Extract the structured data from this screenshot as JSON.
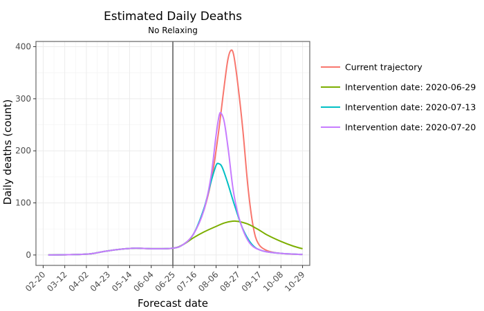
{
  "chart_data": {
    "type": "line",
    "title": "Estimated Daily Deaths",
    "subtitle": "No Relaxing",
    "xlabel": "Forecast date",
    "ylabel": "Daily deaths (count)",
    "x_tick_labels": [
      "02-20",
      "03-12",
      "04-02",
      "04-23",
      "05-14",
      "06-04",
      "06-25",
      "07-16",
      "08-06",
      "08-27",
      "09-17",
      "10-08",
      "10-29"
    ],
    "x_ticks": [
      "2020-02-20",
      "2020-03-12",
      "2020-04-02",
      "2020-04-23",
      "2020-05-14",
      "2020-06-04",
      "2020-06-25",
      "2020-07-16",
      "2020-08-06",
      "2020-08-27",
      "2020-09-17",
      "2020-10-08",
      "2020-10-29"
    ],
    "xlim": [
      "2020-02-13",
      "2020-11-05"
    ],
    "ylim": [
      -20,
      410
    ],
    "y_ticks": [
      0,
      100,
      200,
      300,
      400
    ],
    "vline": "2020-06-25",
    "grid": true,
    "legend_position": "right",
    "series": [
      {
        "name": "Current trajectory",
        "color": "#F8766D",
        "points": [
          [
            "2020-02-25",
            0
          ],
          [
            "2020-03-15",
            0.5
          ],
          [
            "2020-04-05",
            2
          ],
          [
            "2020-04-20",
            7
          ],
          [
            "2020-05-05",
            11
          ],
          [
            "2020-05-20",
            13
          ],
          [
            "2020-06-05",
            12
          ],
          [
            "2020-06-25",
            13
          ],
          [
            "2020-07-05",
            20
          ],
          [
            "2020-07-15",
            40
          ],
          [
            "2020-07-25",
            85
          ],
          [
            "2020-08-02",
            150
          ],
          [
            "2020-08-08",
            230
          ],
          [
            "2020-08-13",
            310
          ],
          [
            "2020-08-17",
            370
          ],
          [
            "2020-08-20",
            392
          ],
          [
            "2020-08-23",
            385
          ],
          [
            "2020-08-27",
            330
          ],
          [
            "2020-09-01",
            240
          ],
          [
            "2020-09-06",
            130
          ],
          [
            "2020-09-11",
            55
          ],
          [
            "2020-09-16",
            22
          ],
          [
            "2020-09-25",
            8
          ],
          [
            "2020-10-08",
            3
          ],
          [
            "2020-10-20",
            1.5
          ],
          [
            "2020-10-29",
            1
          ]
        ]
      },
      {
        "name": "Intervention date: 2020-06-29",
        "color": "#7CAE00",
        "points": [
          [
            "2020-02-25",
            0
          ],
          [
            "2020-03-15",
            0.5
          ],
          [
            "2020-04-05",
            2
          ],
          [
            "2020-04-20",
            7
          ],
          [
            "2020-05-05",
            11
          ],
          [
            "2020-05-20",
            13
          ],
          [
            "2020-06-05",
            12
          ],
          [
            "2020-06-25",
            13
          ],
          [
            "2020-07-05",
            20
          ],
          [
            "2020-07-15",
            33
          ],
          [
            "2020-07-25",
            44
          ],
          [
            "2020-08-05",
            54
          ],
          [
            "2020-08-15",
            62
          ],
          [
            "2020-08-25",
            65
          ],
          [
            "2020-09-05",
            60
          ],
          [
            "2020-09-15",
            50
          ],
          [
            "2020-09-25",
            38
          ],
          [
            "2020-10-08",
            26
          ],
          [
            "2020-10-20",
            17
          ],
          [
            "2020-10-29",
            12
          ]
        ]
      },
      {
        "name": "Intervention date: 2020-07-13",
        "color": "#00BFC4",
        "points": [
          [
            "2020-02-25",
            0
          ],
          [
            "2020-03-15",
            0.5
          ],
          [
            "2020-04-05",
            2
          ],
          [
            "2020-04-20",
            7
          ],
          [
            "2020-05-05",
            11
          ],
          [
            "2020-05-20",
            13
          ],
          [
            "2020-06-05",
            12
          ],
          [
            "2020-06-25",
            13
          ],
          [
            "2020-07-05",
            20
          ],
          [
            "2020-07-15",
            40
          ],
          [
            "2020-07-25",
            88
          ],
          [
            "2020-08-01",
            140
          ],
          [
            "2020-08-06",
            172
          ],
          [
            "2020-08-09",
            175
          ],
          [
            "2020-08-12",
            168
          ],
          [
            "2020-08-17",
            140
          ],
          [
            "2020-08-24",
            95
          ],
          [
            "2020-09-01",
            50
          ],
          [
            "2020-09-10",
            20
          ],
          [
            "2020-09-20",
            8
          ],
          [
            "2020-10-08",
            3
          ],
          [
            "2020-10-29",
            1
          ]
        ]
      },
      {
        "name": "Intervention date: 2020-07-20",
        "color": "#C77CFF",
        "points": [
          [
            "2020-02-25",
            0
          ],
          [
            "2020-03-15",
            0.5
          ],
          [
            "2020-04-05",
            2
          ],
          [
            "2020-04-20",
            7
          ],
          [
            "2020-05-05",
            11
          ],
          [
            "2020-05-20",
            13
          ],
          [
            "2020-06-05",
            12
          ],
          [
            "2020-06-25",
            13
          ],
          [
            "2020-07-05",
            20
          ],
          [
            "2020-07-15",
            40
          ],
          [
            "2020-07-25",
            85
          ],
          [
            "2020-08-01",
            150
          ],
          [
            "2020-08-06",
            230
          ],
          [
            "2020-08-09",
            268
          ],
          [
            "2020-08-11",
            272
          ],
          [
            "2020-08-14",
            255
          ],
          [
            "2020-08-18",
            200
          ],
          [
            "2020-08-23",
            120
          ],
          [
            "2020-08-30",
            60
          ],
          [
            "2020-09-08",
            22
          ],
          [
            "2020-09-20",
            8
          ],
          [
            "2020-10-08",
            3
          ],
          [
            "2020-10-29",
            1
          ]
        ]
      }
    ]
  }
}
